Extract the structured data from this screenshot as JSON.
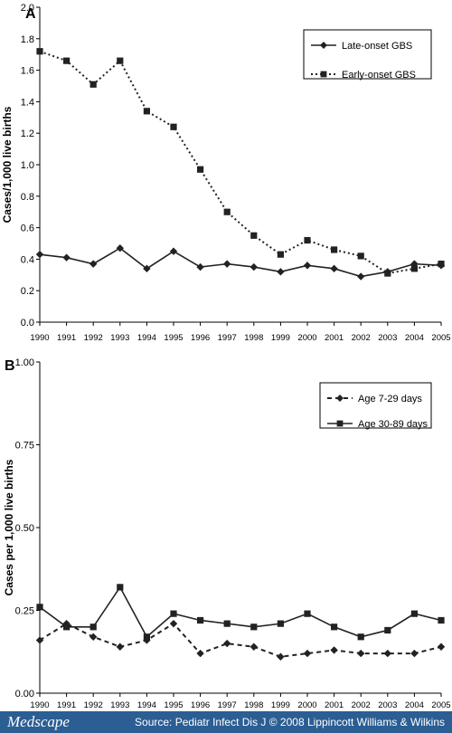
{
  "footer": {
    "logo": "Medscape",
    "source": "Source: Pediatr Infect Dis J © 2008 Lippincott Williams & Wilkins"
  },
  "chart_data": [
    {
      "type": "line",
      "panel_label": "A",
      "ylabel": "Cases/1,000 live births",
      "ylim": [
        0,
        2.0
      ],
      "yticks": [
        "0.0",
        "0.2",
        "0.4",
        "0.6",
        "0.8",
        "1.0",
        "1.2",
        "1.4",
        "1.6",
        "1.8",
        "2.0"
      ],
      "categories": [
        "1990",
        "1991",
        "1992",
        "1993",
        "1994",
        "1995",
        "1996",
        "1997",
        "1998",
        "1999",
        "2000",
        "2001",
        "2002",
        "2003",
        "2004",
        "2005"
      ],
      "legend_position": "top-right",
      "series": [
        {
          "name": "Late-onset GBS",
          "style": "solid",
          "marker": "diamond",
          "values": [
            0.43,
            0.41,
            0.37,
            0.47,
            0.34,
            0.45,
            0.35,
            0.37,
            0.35,
            0.32,
            0.36,
            0.34,
            0.29,
            0.32,
            0.37,
            0.36
          ]
        },
        {
          "name": "Early-onset GBS",
          "style": "dotted",
          "marker": "square",
          "values": [
            1.72,
            1.66,
            1.51,
            1.66,
            1.34,
            1.24,
            0.97,
            0.7,
            0.55,
            0.43,
            0.52,
            0.46,
            0.42,
            0.31,
            0.34,
            0.37
          ]
        }
      ]
    },
    {
      "type": "line",
      "panel_label": "B",
      "ylabel": "Cases per 1,000 live births",
      "ylim": [
        0,
        1.0
      ],
      "yticks": [
        "0.00",
        "0.25",
        "0.50",
        "0.75",
        "1.00"
      ],
      "categories": [
        "1990",
        "1991",
        "1992",
        "1993",
        "1994",
        "1995",
        "1996",
        "1997",
        "1998",
        "1999",
        "2000",
        "2001",
        "2002",
        "2003",
        "2004",
        "2005"
      ],
      "legend_position": "top-right",
      "series": [
        {
          "name": "Age 7-29 days",
          "style": "dashed",
          "marker": "diamond",
          "values": [
            0.16,
            0.21,
            0.17,
            0.14,
            0.16,
            0.21,
            0.12,
            0.15,
            0.14,
            0.11,
            0.12,
            0.13,
            0.12,
            0.12,
            0.12,
            0.14
          ]
        },
        {
          "name": "Age 30-89 days",
          "style": "solid",
          "marker": "square",
          "values": [
            0.26,
            0.2,
            0.2,
            0.32,
            0.17,
            0.24,
            0.22,
            0.21,
            0.2,
            0.21,
            0.24,
            0.2,
            0.17,
            0.19,
            0.24,
            0.22
          ]
        }
      ]
    }
  ]
}
